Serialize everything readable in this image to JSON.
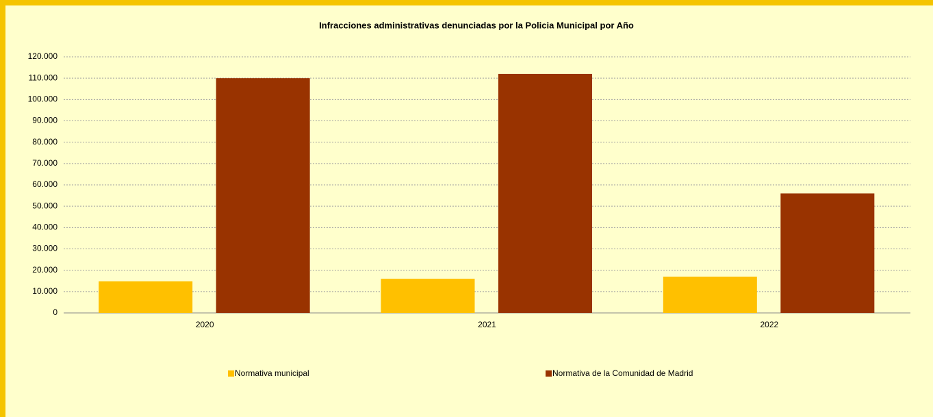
{
  "chart_data": {
    "type": "bar",
    "title": "Infracciones administrativas denunciadas por la Policia Municipal por Año",
    "categories": [
      "2020",
      "2021",
      "2022"
    ],
    "series": [
      {
        "name": "Normativa municipal",
        "color": "#ffc000",
        "values": [
          14800,
          16000,
          17000
        ]
      },
      {
        "name": "Normativa de la Comunidad de Madrid",
        "color": "#993300",
        "values": [
          110000,
          112000,
          56000
        ]
      }
    ],
    "ylim": [
      0,
      120000
    ],
    "yticks": [
      0,
      {
        "value": 10000,
        "label": "10.000"
      },
      {
        "value": 20000,
        "label": "20.000"
      },
      {
        "value": 30000,
        "label": "30.000"
      },
      {
        "value": 40000,
        "label": "40.000"
      },
      {
        "value": 50000,
        "label": "50.000"
      },
      {
        "value": 60000,
        "label": "60.000"
      },
      {
        "value": 70000,
        "label": "70.000"
      },
      {
        "value": 80000,
        "label": "80.000"
      },
      {
        "value": 90000,
        "label": "90.000"
      },
      {
        "value": 100000,
        "label": "100.000"
      },
      {
        "value": 110000,
        "label": "110.000"
      },
      {
        "value": 120000,
        "label": "120.000"
      }
    ],
    "grid": true,
    "legend": "bottom"
  }
}
